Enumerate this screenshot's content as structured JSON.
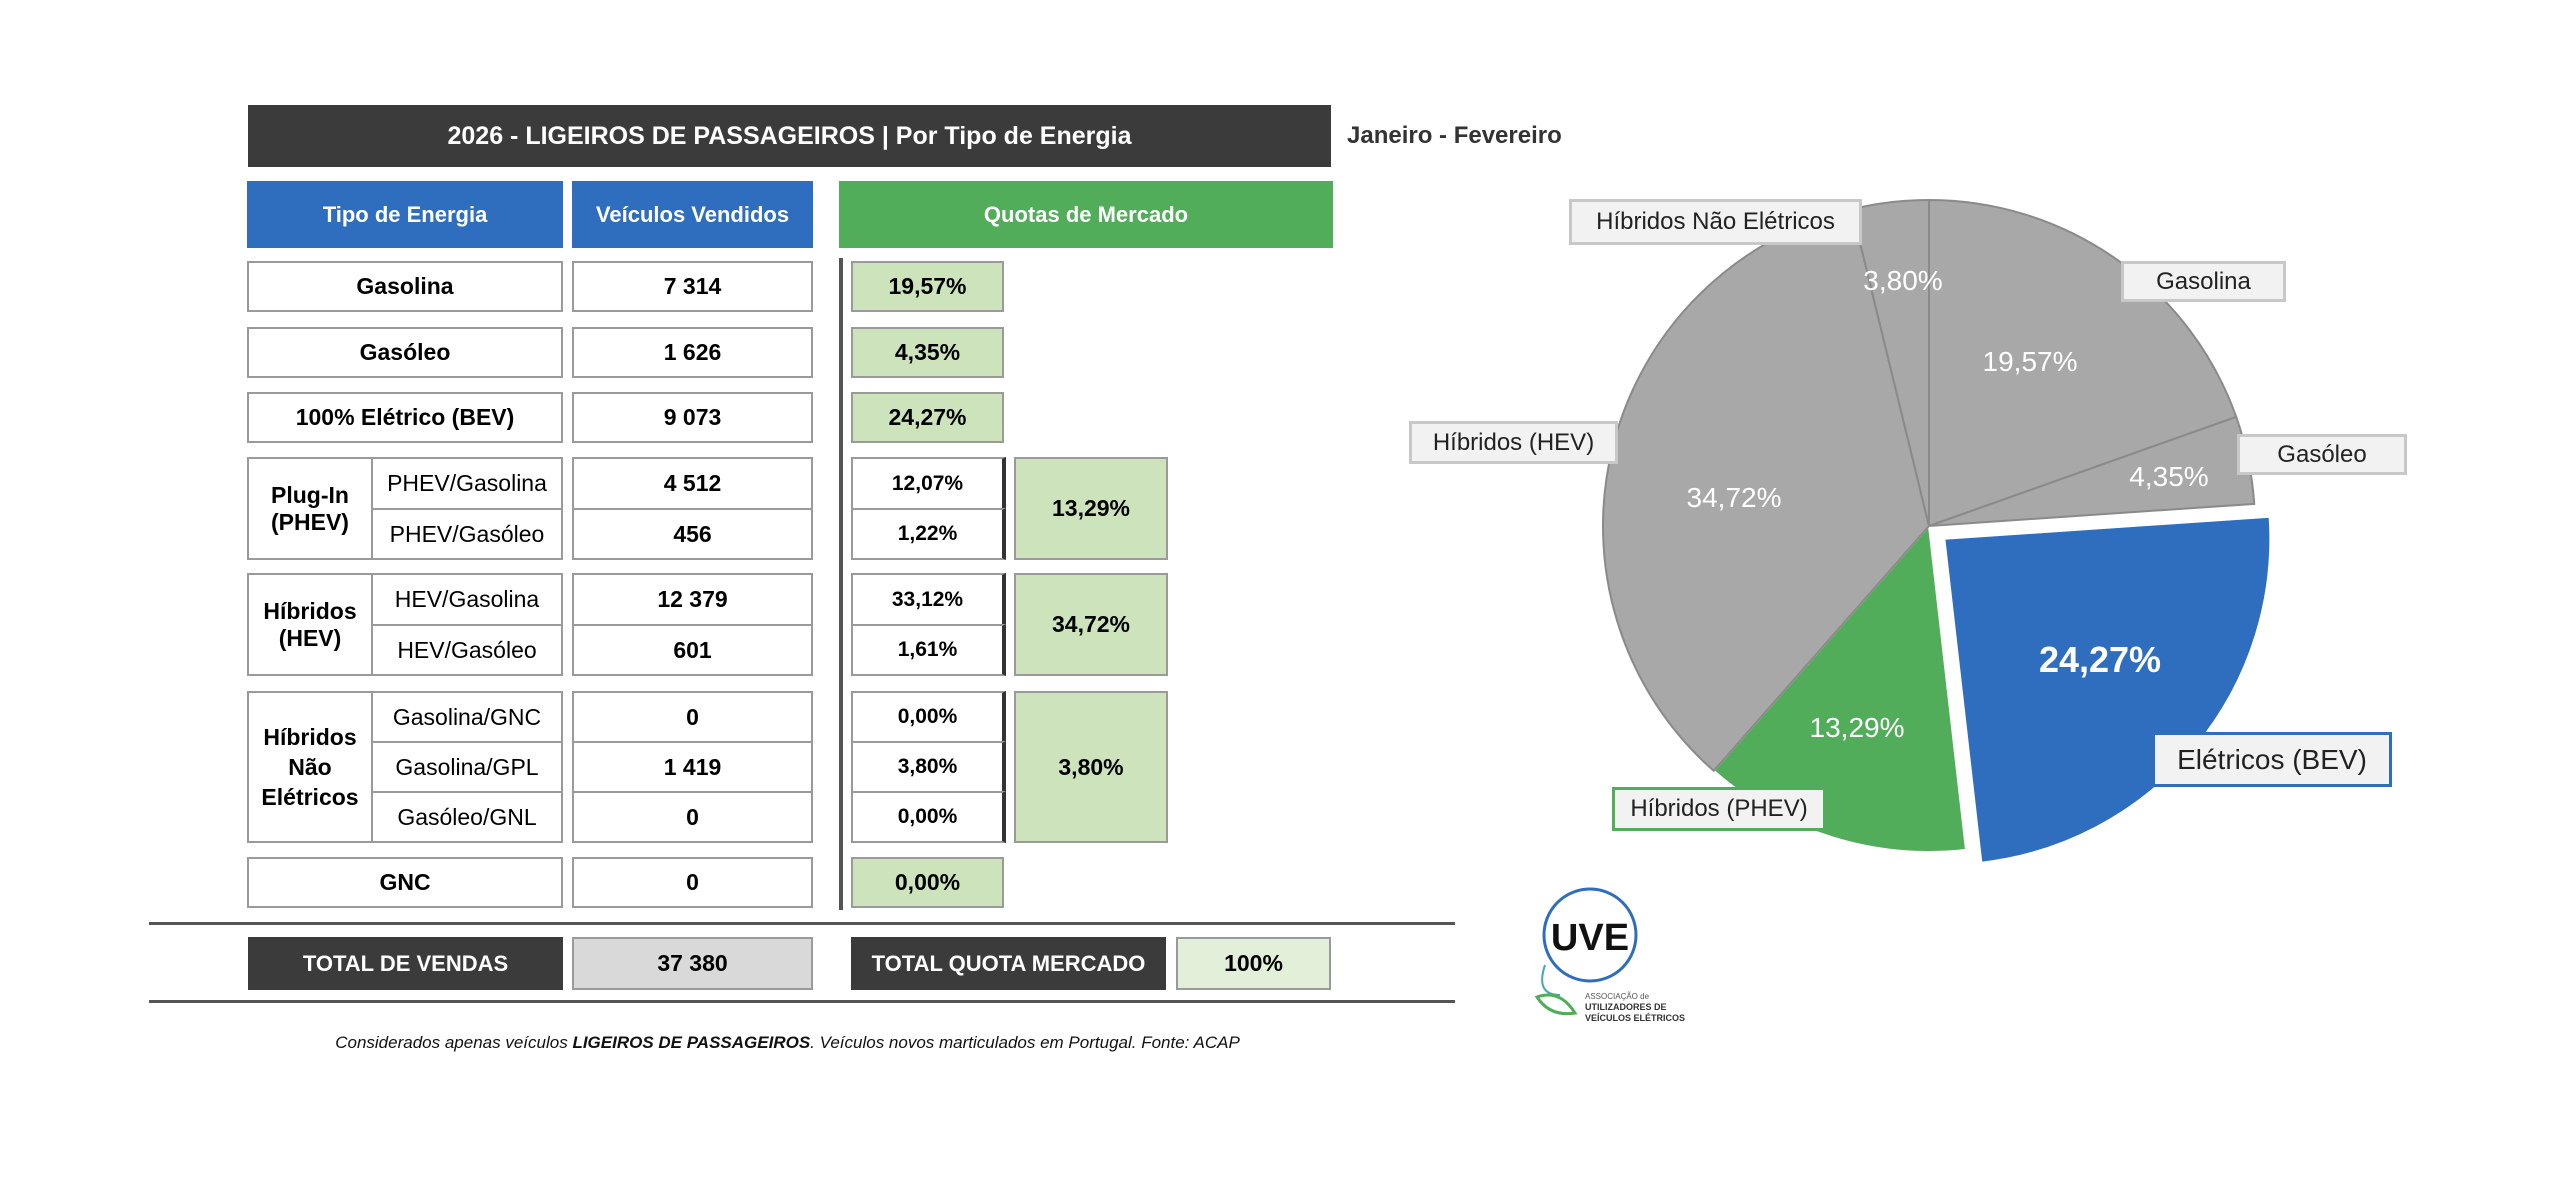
{
  "header": {
    "title": "2026 - LIGEIROS DE PASSAGEIROS | Por Tipo de Energia",
    "period": "Janeiro - Fevereiro"
  },
  "columns": {
    "type": "Tipo de Energia",
    "sold": "Veículos Vendidos",
    "share": "Quotas de Mercado"
  },
  "rows": {
    "gasolina": {
      "label": "Gasolina",
      "sold": "7 314",
      "share": "19,57%"
    },
    "gasoleo": {
      "label": "Gasóleo",
      "sold": "1 626",
      "share": "4,35%"
    },
    "bev": {
      "label": "100% Elétrico (BEV)",
      "sold": "9 073",
      "share": "24,27%"
    },
    "phev": {
      "label_line1": "Plug-In",
      "label_line2": "(PHEV)",
      "total_share": "13,29%",
      "sub": [
        {
          "label": "PHEV/Gasolina",
          "sold": "4 512",
          "share": "12,07%"
        },
        {
          "label": "PHEV/Gasóleo",
          "sold": "456",
          "share": "1,22%"
        }
      ]
    },
    "hev": {
      "label_line1": "Híbridos",
      "label_line2": "(HEV)",
      "total_share": "34,72%",
      "sub": [
        {
          "label": "HEV/Gasolina",
          "sold": "12 379",
          "share": "33,12%"
        },
        {
          "label": "HEV/Gasóleo",
          "sold": "601",
          "share": "1,61%"
        }
      ]
    },
    "hne": {
      "label_line1": "Híbridos",
      "label_line2": "Não",
      "label_line3": "Elétricos",
      "total_share": "3,80%",
      "sub": [
        {
          "label": "Gasolina/GNC",
          "sold": "0",
          "share": "0,00%"
        },
        {
          "label": "Gasolina/GPL",
          "sold": "1 419",
          "share": "3,80%"
        },
        {
          "label": "Gasóleo/GNL",
          "sold": "0",
          "share": "0,00%"
        }
      ]
    },
    "gnc": {
      "label": "GNC",
      "sold": "0",
      "share": "0,00%"
    }
  },
  "totals": {
    "sales_label": "TOTAL DE VENDAS",
    "sales_value": "37 380",
    "share_label": "TOTAL QUOTA MERCADO",
    "share_value": "100%"
  },
  "footnote": {
    "pre": "Considerados apenas veículos ",
    "bold": "LIGEIROS DE PASSAGEIROS",
    "post": ". Veículos novos marticulados em Portugal. Fonte: ACAP"
  },
  "logo": {
    "mark": "UVE",
    "line1": "ASSOCIAÇÃO de",
    "line2": "UTILIZADORES DE",
    "line3": "VEÍCULOS ELÉTRICOS"
  },
  "colors": {
    "dark": "#3b3b3b",
    "blue": "#2f6ebe",
    "green": "#52ad5a",
    "light_green": "#cde3bc",
    "gray": "#a9a8a8"
  },
  "chart_data": {
    "type": "pie",
    "start": "12 o'clock, clockwise",
    "slices": [
      {
        "name": "Gasolina",
        "value": 19.57,
        "label": "19,57%",
        "color": "#a9a8a8"
      },
      {
        "name": "Gasóleo",
        "value": 4.35,
        "label": "4,35%",
        "color": "#a9a8a8"
      },
      {
        "name": "Elétricos (BEV)",
        "value": 24.27,
        "label": "24,27%",
        "color": "#2f6ebe",
        "exploded": true
      },
      {
        "name": "Híbridos (PHEV)",
        "value": 13.29,
        "label": "13,29%",
        "color": "#52ad5a"
      },
      {
        "name": "Híbridos (HEV)",
        "value": 34.72,
        "label": "34,72%",
        "color": "#a9a8a8"
      },
      {
        "name": "Híbridos Não Elétricos",
        "value": 3.8,
        "label": "3,80%",
        "color": "#a9a8a8"
      }
    ]
  }
}
